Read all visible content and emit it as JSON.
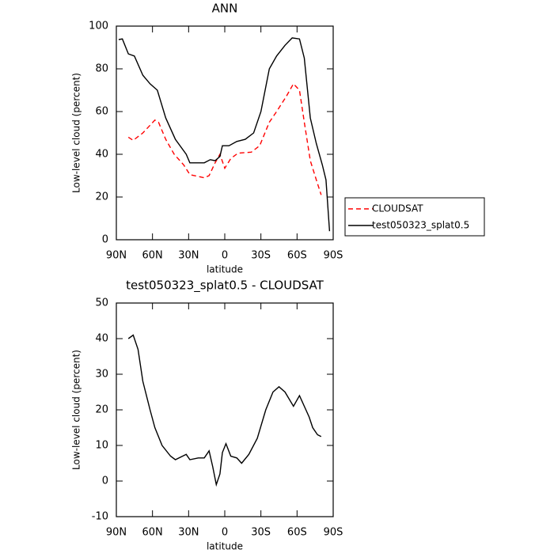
{
  "chart_data": [
    {
      "type": "line",
      "title": "ANN",
      "xlabel": "latitude",
      "ylabel": "Low-level cloud (percent)",
      "xlim": [
        90,
        -90
      ],
      "xticks": [
        {
          "value": 90,
          "label": "90N"
        },
        {
          "value": 60,
          "label": "60N"
        },
        {
          "value": 30,
          "label": "30N"
        },
        0,
        {
          "value": -30,
          "label": "30S"
        },
        {
          "value": -60,
          "label": "60S"
        },
        {
          "value": -90,
          "label": "90S"
        }
      ],
      "ylim": [
        0,
        100
      ],
      "yticks": [
        0,
        20,
        40,
        60,
        80,
        100
      ],
      "legend": "right",
      "series": [
        {
          "name": "CLOUDSAT",
          "color": "#ff0000",
          "style": "dashed",
          "x": [
            80,
            76,
            68,
            58,
            55,
            49,
            42,
            34,
            29,
            17,
            13,
            8,
            4,
            0,
            -5,
            -11,
            -22,
            -29,
            -37,
            -43,
            -51,
            -57,
            -62,
            -66,
            -71,
            -76,
            -80
          ],
          "values": [
            48,
            46.5,
            50,
            56,
            55,
            47,
            40,
            35,
            30.5,
            29,
            30,
            36,
            40,
            33.5,
            38,
            40.5,
            41,
            44,
            55,
            60,
            67,
            73,
            70,
            55,
            37,
            28,
            21
          ]
        },
        {
          "name": "test050323_splat0.5",
          "color": "#000000",
          "style": "solid",
          "x": [
            88,
            85,
            80,
            75,
            68,
            62,
            56,
            49,
            41,
            32,
            29,
            22,
            17,
            12,
            8,
            4,
            2,
            -3.5,
            -10,
            -17,
            -24,
            -30,
            -37,
            -43,
            -50,
            -56,
            -62,
            -66,
            -71,
            -76,
            -81,
            -84,
            -87
          ],
          "values": [
            93.7,
            94,
            87,
            86,
            77,
            73,
            70,
            57,
            47,
            40,
            36,
            36,
            36,
            37.5,
            37,
            39,
            44,
            44,
            46,
            47,
            50,
            60,
            80,
            86,
            91,
            94.5,
            94,
            85,
            57,
            45,
            35,
            28,
            4
          ]
        }
      ]
    },
    {
      "type": "line",
      "title": "test050323_splat0.5 - CLOUDSAT",
      "xlabel": "latitude",
      "ylabel": "Low-level cloud (percent)",
      "xlim": [
        90,
        -90
      ],
      "xticks": [
        {
          "value": 90,
          "label": "90N"
        },
        {
          "value": 60,
          "label": "60N"
        },
        {
          "value": 30,
          "label": "30N"
        },
        0,
        {
          "value": -30,
          "label": "30S"
        },
        {
          "value": -60,
          "label": "60S"
        },
        {
          "value": -90,
          "label": "90S"
        }
      ],
      "ylim": [
        -10,
        50
      ],
      "yticks": [
        -10,
        0,
        10,
        20,
        30,
        40,
        50
      ],
      "series": [
        {
          "color": "#000000",
          "style": "solid",
          "x": [
            80,
            76,
            72,
            68,
            62,
            58,
            52,
            45,
            41,
            32,
            29,
            22,
            17,
            13,
            10,
            7,
            4,
            2,
            -1,
            -5,
            -10,
            -14,
            -20,
            -27,
            -34,
            -40,
            -45,
            -50,
            -57,
            -62,
            -66,
            -70,
            -73,
            -77,
            -80
          ],
          "values": [
            40,
            41,
            37,
            28,
            20,
            15,
            10,
            7,
            6,
            7.5,
            6,
            6.5,
            6.5,
            8.5,
            4,
            -1,
            2,
            8,
            10.5,
            7,
            6.5,
            5,
            7.5,
            12,
            20,
            25,
            26.5,
            25,
            21,
            24,
            21,
            18,
            15,
            13,
            12.5
          ]
        }
      ]
    }
  ]
}
